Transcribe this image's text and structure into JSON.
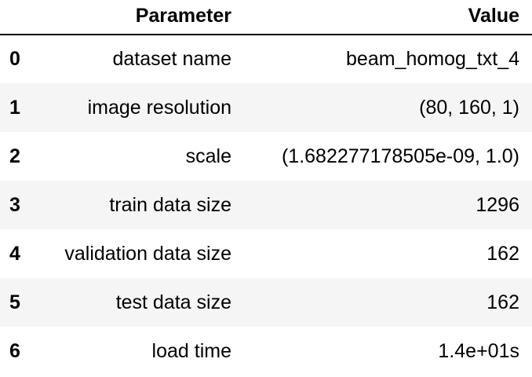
{
  "table": {
    "headers": {
      "index": "",
      "parameter": "Parameter",
      "value": "Value"
    },
    "rows": [
      {
        "index": "0",
        "parameter": "dataset name",
        "value": "beam_homog_txt_4"
      },
      {
        "index": "1",
        "parameter": "image resolution",
        "value": "(80, 160, 1)"
      },
      {
        "index": "2",
        "parameter": "scale",
        "value": "(1.682277178505e-09, 1.0)"
      },
      {
        "index": "3",
        "parameter": "train data size",
        "value": "1296"
      },
      {
        "index": "4",
        "parameter": "validation data size",
        "value": "162"
      },
      {
        "index": "5",
        "parameter": "test data size",
        "value": "162"
      },
      {
        "index": "6",
        "parameter": "load time",
        "value": "1.4e+01s"
      }
    ],
    "stripe_color": "#f5f5f5",
    "header_rule_color": "#000000"
  }
}
